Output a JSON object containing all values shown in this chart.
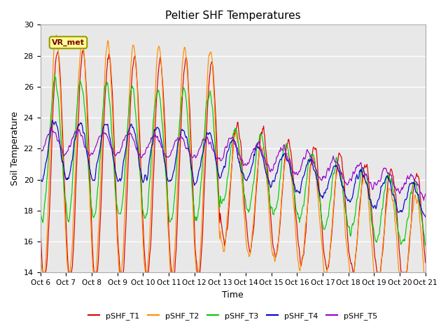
{
  "title": "Peltier SHF Temperatures",
  "ylabel": "Soil Temperature",
  "xlabel": "Time",
  "ylim": [
    14,
    30
  ],
  "annotation": "VR_met",
  "background_color": "#e8e8e8",
  "grid_color": "white",
  "series": {
    "pSHF_T1": {
      "color": "#dd0000"
    },
    "pSHF_T2": {
      "color": "#ff8c00"
    },
    "pSHF_T3": {
      "color": "#00cc00"
    },
    "pSHF_T4": {
      "color": "#0000cc"
    },
    "pSHF_T5": {
      "color": "#9900cc"
    }
  },
  "xtick_labels": [
    "Oct 6",
    "Oct 7",
    "Oct 8",
    "Oct 9",
    "Oct 10",
    "Oct 11",
    "Oct 12",
    "Oct 13",
    "Oct 14",
    "Oct 15",
    "Oct 16",
    "Oct 17",
    "Oct 18",
    "Oct 19",
    "Oct 20",
    "Oct 21"
  ],
  "xtick_positions": [
    0,
    1,
    2,
    3,
    4,
    5,
    6,
    7,
    8,
    9,
    10,
    11,
    12,
    13,
    14,
    15
  ],
  "ytick_labels": [
    "14",
    "16",
    "18",
    "20",
    "22",
    "24",
    "26",
    "28",
    "30"
  ],
  "ytick_positions": [
    14,
    16,
    18,
    20,
    22,
    24,
    26,
    28,
    30
  ]
}
